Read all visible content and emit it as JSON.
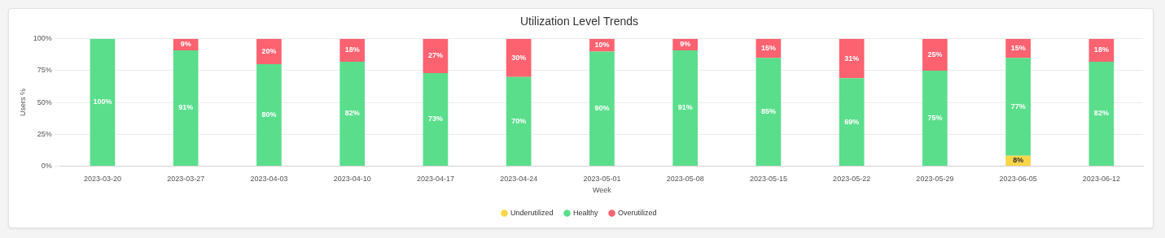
{
  "chart_data": {
    "type": "bar",
    "title": "Utilization Level Trends",
    "x_label": "Week",
    "y_label": "Users %",
    "categories": [
      "2023-03-20",
      "2023-03-27",
      "2023-04-03",
      "2023-04-10",
      "2023-04-17",
      "2023-04-24",
      "2023-05-01",
      "2023-05-08",
      "2023-05-15",
      "2023-05-22",
      "2023-05-29",
      "2023-06-05",
      "2023-06-12"
    ],
    "series": [
      {
        "name": "Underutilized",
        "color": "#f9d648",
        "values": [
          null,
          null,
          null,
          null,
          null,
          null,
          null,
          null,
          null,
          null,
          null,
          8,
          null
        ],
        "value_labels": [
          null,
          null,
          null,
          null,
          null,
          null,
          null,
          null,
          null,
          null,
          null,
          "8%",
          null
        ]
      },
      {
        "name": "Healthy",
        "color": "#5ade8c",
        "values": [
          100,
          91,
          80,
          82,
          73,
          70,
          90,
          91,
          85,
          69,
          75,
          77,
          82
        ],
        "value_labels": [
          "100%",
          "91%",
          "80%",
          "82%",
          "73%",
          "70%",
          "90%",
          "91%",
          "85%",
          "69%",
          "75%",
          "77%",
          "82%"
        ]
      },
      {
        "name": "Overutilized",
        "color": "#fc6270",
        "values": [
          null,
          9,
          20,
          18,
          27,
          30,
          10,
          9,
          15,
          31,
          25,
          15,
          18
        ],
        "value_labels": [
          null,
          "9%",
          "20%",
          "18%",
          "27%",
          "30%",
          "10%",
          "9%",
          "15%",
          "31%",
          "25%",
          "15%",
          "18%"
        ]
      }
    ],
    "stacked": true,
    "data_labels": true,
    "ylim": [
      0,
      100
    ],
    "yticks": [
      {
        "value": 0,
        "label": "0%"
      },
      {
        "value": 25,
        "label": "25%"
      },
      {
        "value": 50,
        "label": "50%"
      },
      {
        "value": 75,
        "label": "75%"
      },
      {
        "value": 100,
        "label": "100%"
      }
    ],
    "grid": true,
    "legend": "bottom"
  }
}
